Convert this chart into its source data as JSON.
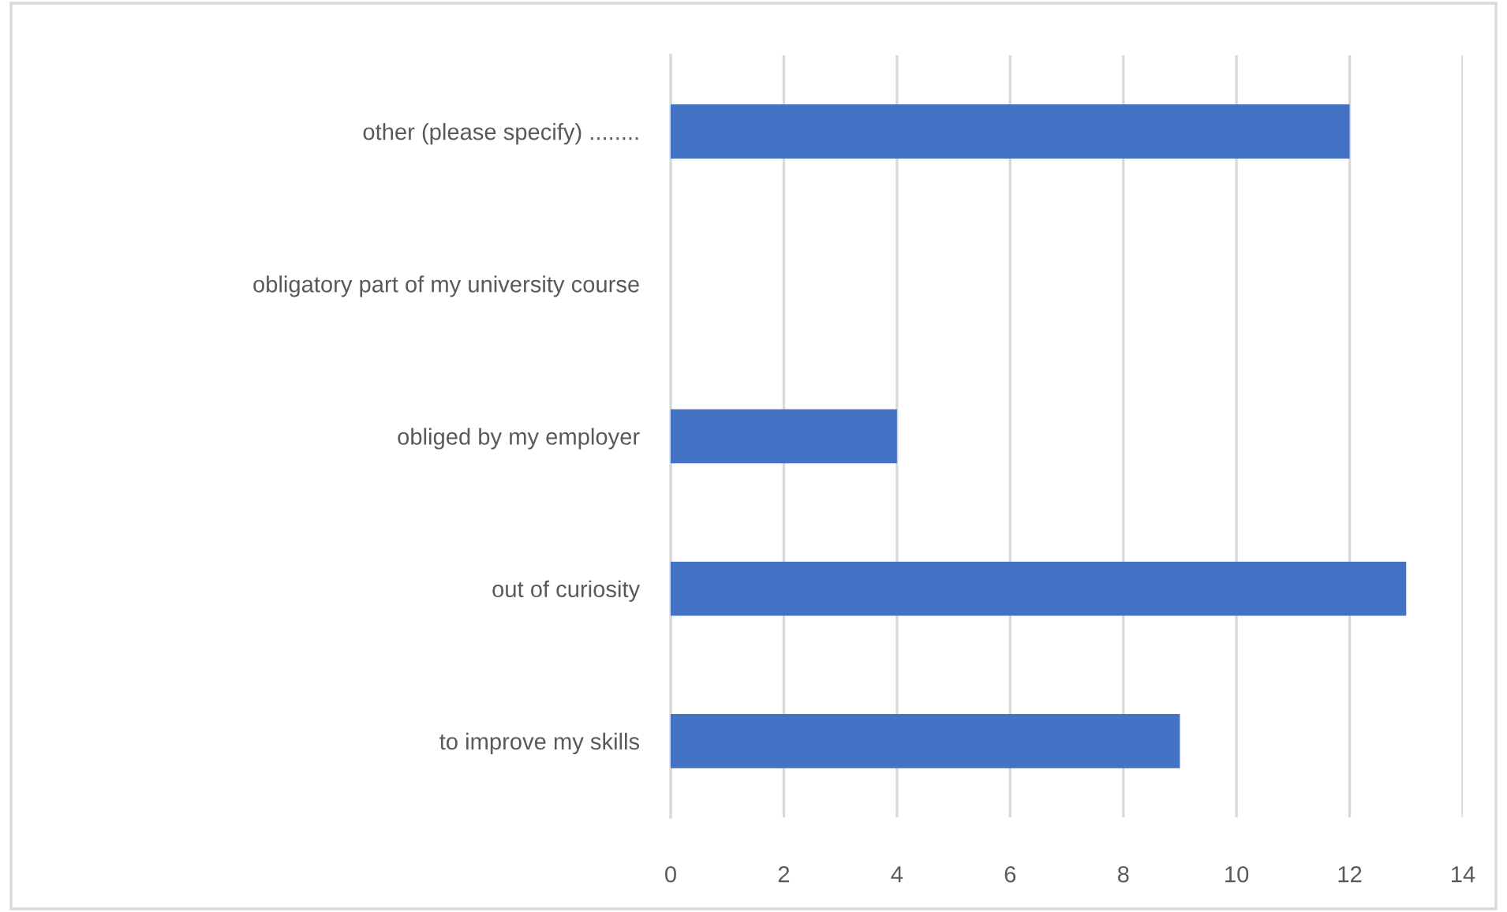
{
  "chart_data": {
    "type": "bar",
    "orientation": "horizontal",
    "categories": [
      "other (please specify) ........",
      "obligatory part of my university course",
      "obliged by my employer",
      "out of curiosity",
      "to improve my skills"
    ],
    "values": [
      12,
      0,
      4,
      13,
      9
    ],
    "color": "#4472c4",
    "xlim": [
      0,
      14
    ],
    "xticks": [
      0,
      2,
      4,
      6,
      8,
      10,
      12,
      14
    ],
    "grid": "x"
  }
}
